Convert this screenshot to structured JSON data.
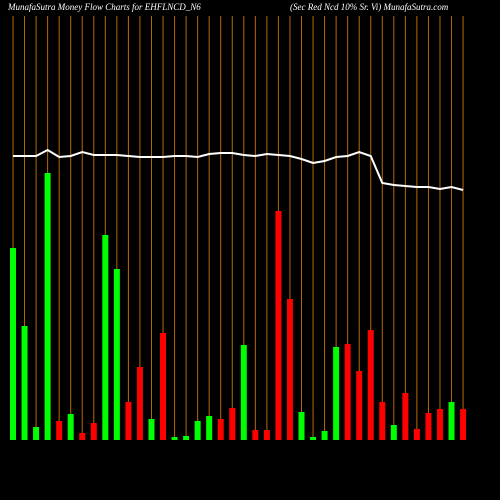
{
  "chart_data": {
    "type": "bar",
    "title": "MunafaSutra  Money Flow  Charts for EHFLNCD_N6",
    "subtitle": "(Sec Red Ncd 10% Sr. Vi) MunafaSutra.com",
    "values": [
      192,
      114,
      13,
      267,
      19,
      26,
      7,
      17,
      205,
      171,
      38,
      73,
      21,
      107,
      3,
      4,
      19,
      24,
      21,
      32,
      95,
      10,
      10,
      229,
      141,
      28,
      3,
      9,
      93,
      96,
      69,
      110,
      38,
      15,
      47,
      11,
      27,
      31,
      38,
      31
    ],
    "bar_colors": [
      "#00ff00",
      "#00ff00",
      "#00ff00",
      "#00ff00",
      "#ff0000",
      "#00ff00",
      "#ff0000",
      "#ff0000",
      "#00ff00",
      "#00ff00",
      "#ff0000",
      "#ff0000",
      "#00ff00",
      "#ff0000",
      "#00ff00",
      "#00ff00",
      "#00ff00",
      "#00ff00",
      "#ff0000",
      "#ff0000",
      "#00ff00",
      "#ff0000",
      "#ff0000",
      "#ff0000",
      "#ff0000",
      "#00ff00",
      "#00ff00",
      "#00ff00",
      "#00ff00",
      "#ff0000",
      "#ff0000",
      "#ff0000",
      "#ff0000",
      "#00ff00",
      "#ff0000",
      "#ff0000",
      "#ff0000",
      "#ff0000",
      "#00ff00",
      "#ff0000"
    ],
    "line": {
      "color": "#ffffff",
      "values": [
        284,
        284,
        284,
        290,
        283,
        284,
        288,
        285,
        285,
        285,
        284,
        283,
        283,
        283,
        284,
        284,
        283,
        286,
        287,
        287,
        285,
        284,
        286,
        285,
        284,
        281,
        277,
        279,
        283,
        284,
        288,
        284,
        257,
        255,
        254,
        253,
        253,
        251,
        253,
        250
      ]
    },
    "gridline_color": "#b8690a"
  }
}
